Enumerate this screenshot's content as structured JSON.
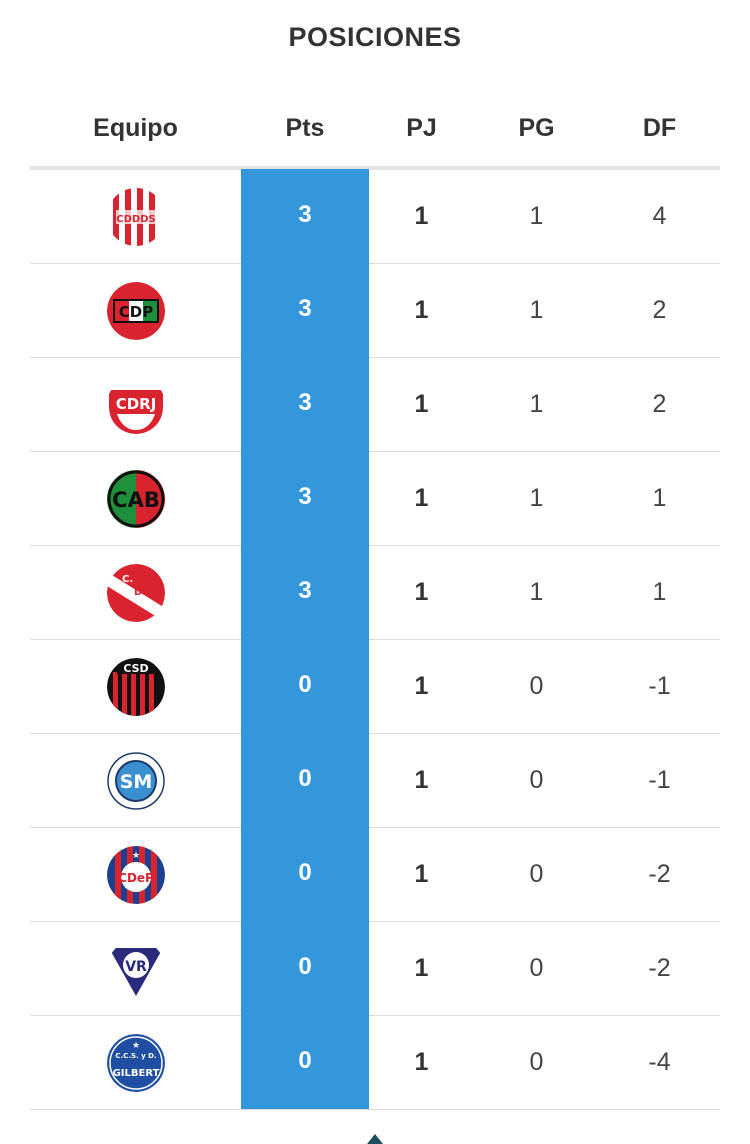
{
  "title": "POSICIONES",
  "columns": {
    "team": "Equipo",
    "pts": "Pts",
    "pj": "PJ",
    "pg": "PG",
    "df": "DF"
  },
  "rows": [
    {
      "logo": "cddds-crest-icon",
      "logo_text": "CDDDS",
      "pts": "3",
      "pj": "1",
      "pg": "1",
      "df": "4"
    },
    {
      "logo": "cdp-crest-icon",
      "logo_text": "CDP",
      "pts": "3",
      "pj": "1",
      "pg": "1",
      "df": "2"
    },
    {
      "logo": "cdrj-crest-icon",
      "logo_text": "CDRJ",
      "pts": "3",
      "pj": "1",
      "pg": "1",
      "df": "2"
    },
    {
      "logo": "cab-crest-icon",
      "logo_text": "CAB",
      "pts": "3",
      "pj": "1",
      "pg": "1",
      "df": "1"
    },
    {
      "logo": "cdm-crest-icon",
      "logo_text": "C. D. M.",
      "pts": "3",
      "pj": "1",
      "pg": "1",
      "df": "1"
    },
    {
      "logo": "csd-crest-icon",
      "logo_text": "CSD",
      "pts": "0",
      "pj": "1",
      "pg": "0",
      "df": "-1"
    },
    {
      "logo": "sm-crest-icon",
      "logo_text": "SM",
      "pts": "0",
      "pj": "1",
      "pg": "0",
      "df": "-1"
    },
    {
      "logo": "cdp-round-crest-icon",
      "logo_text": "CDeP",
      "pts": "0",
      "pj": "1",
      "pg": "0",
      "df": "-2"
    },
    {
      "logo": "vr-crest-icon",
      "logo_text": "VR",
      "pts": "0",
      "pj": "1",
      "pg": "0",
      "df": "-2"
    },
    {
      "logo": "gilbert-crest-icon",
      "logo_text": "GILBERT",
      "pts": "0",
      "pj": "1",
      "pg": "0",
      "df": "-4"
    }
  ],
  "colors": {
    "accent": "#3497dc",
    "text": "#333333",
    "divider": "#dcdcdc"
  }
}
